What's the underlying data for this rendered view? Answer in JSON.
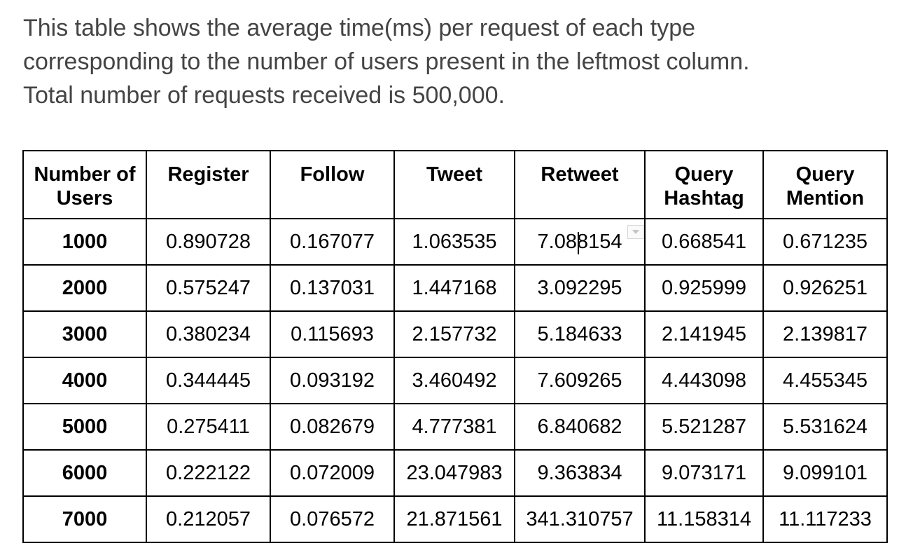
{
  "intro": {
    "line1": "This table shows the average time(ms) per request of each type",
    "line2": "corresponding to the number of users present in the leftmost column.",
    "line3": "Total number of requests received is 500,000."
  },
  "table": {
    "headers": [
      [
        "Number of",
        "Users"
      ],
      [
        "Register"
      ],
      [
        "Follow"
      ],
      [
        "Tweet"
      ],
      [
        "Retweet"
      ],
      [
        "Query",
        "Hashtag"
      ],
      [
        "Query",
        "Mention"
      ]
    ],
    "rows": [
      [
        "1000",
        "0.890728",
        "0.167077",
        "1.063535",
        "7.088154",
        "0.668541",
        "0.671235"
      ],
      [
        "2000",
        "0.575247",
        "0.137031",
        "1.447168",
        "3.092295",
        "0.925999",
        "0.926251"
      ],
      [
        "3000",
        "0.380234",
        "0.115693",
        "2.157732",
        "5.184633",
        "2.141945",
        "2.139817"
      ],
      [
        "4000",
        "0.344445",
        "0.093192",
        "3.460492",
        "7.609265",
        "4.443098",
        "4.455345"
      ],
      [
        "5000",
        "0.275411",
        "0.082679",
        "4.777381",
        "6.840682",
        "5.521287",
        "5.531624"
      ],
      [
        "6000",
        "0.222122",
        "0.072009",
        "23.047983",
        "9.363834",
        "9.073171",
        "9.099101"
      ],
      [
        "7000",
        "0.212057",
        "0.076572",
        "21.871561",
        "341.310757",
        "11.158314",
        "11.117233"
      ]
    ]
  },
  "icons": {
    "cell_dropdown": "chevron-down-icon",
    "text_cursor": "text-cursor-icon"
  }
}
